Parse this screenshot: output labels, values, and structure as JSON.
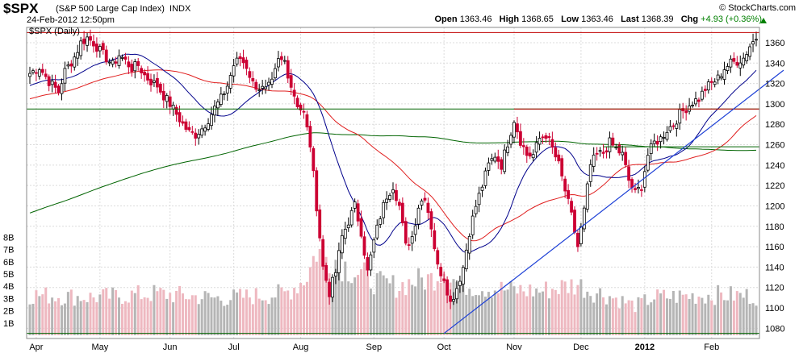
{
  "header": {
    "ticker": "$SPX",
    "name": "(S&P 500 Large Cap Index)",
    "exchange": "INDX",
    "datetime": "24-Feb-2012 12:50pm",
    "brand": "© StockCharts.com",
    "open_label": "Open",
    "open": "1363.46",
    "high_label": "High",
    "high": "1368.65",
    "low_label": "Low",
    "low": "1363.46",
    "last_label": "Last",
    "last": "1368.39",
    "chg_label": "Chg",
    "chg": "+4.93 (+0.36%)",
    "chart_label": "$SPX (Daily)"
  },
  "colors": {
    "up_candle": "#000000",
    "down_candle": "#cc0033",
    "sma_short": "#00008b",
    "sma_mid": "#e02020",
    "sma_long": "#006400",
    "trendline": "#1c3fd6",
    "resistance": "#c00000",
    "support": "#006400",
    "volume_up": "#b5b5b5",
    "volume_down": "#eeb8c0"
  },
  "chart_data": {
    "type": "candlestick",
    "ylim": [
      1070,
      1375
    ],
    "yticks": [
      1080,
      1100,
      1120,
      1140,
      1160,
      1180,
      1200,
      1220,
      1240,
      1260,
      1280,
      1300,
      1320,
      1340,
      1360
    ],
    "ytick_labels": [
      "1080",
      "1100",
      "1120",
      "1140",
      "1160",
      "1180",
      "1200",
      "1220",
      "1240",
      "1260",
      "1280",
      "1300",
      "1320",
      "1340",
      "1360"
    ],
    "volume_axis_labels": [
      "1B",
      "2B",
      "3B",
      "4B",
      "5B",
      "6B",
      "7B",
      "8B"
    ],
    "volume_axis_values": [
      1,
      2,
      3,
      4,
      5,
      6,
      7,
      8
    ],
    "xlabels": [
      "Apr",
      "May",
      "Jun",
      "Jul",
      "Aug",
      "Sep",
      "Oct",
      "Nov",
      "Dec",
      "2012",
      "Feb"
    ],
    "xlabel_days": [
      2,
      22,
      44,
      64,
      85,
      108,
      130,
      152,
      173,
      193,
      214
    ],
    "total_days": 229,
    "anchors": [
      [
        0,
        1330
      ],
      [
        3,
        1336
      ],
      [
        6,
        1322
      ],
      [
        9,
        1312
      ],
      [
        11,
        1332
      ],
      [
        14,
        1346
      ],
      [
        16,
        1360
      ],
      [
        18,
        1365
      ],
      [
        20,
        1360
      ],
      [
        22,
        1352
      ],
      [
        24,
        1345
      ],
      [
        26,
        1338
      ],
      [
        28,
        1348
      ],
      [
        30,
        1342
      ],
      [
        32,
        1335
      ],
      [
        34,
        1338
      ],
      [
        36,
        1328
      ],
      [
        38,
        1322
      ],
      [
        40,
        1318
      ],
      [
        42,
        1308
      ],
      [
        44,
        1300
      ],
      [
        46,
        1290
      ],
      [
        48,
        1280
      ],
      [
        50,
        1272
      ],
      [
        52,
        1270
      ],
      [
        54,
        1276
      ],
      [
        56,
        1285
      ],
      [
        58,
        1296
      ],
      [
        60,
        1305
      ],
      [
        62,
        1318
      ],
      [
        64,
        1338
      ],
      [
        66,
        1345
      ],
      [
        68,
        1337
      ],
      [
        70,
        1320
      ],
      [
        72,
        1316
      ],
      [
        74,
        1313
      ],
      [
        76,
        1320
      ],
      [
        78,
        1342
      ],
      [
        80,
        1342
      ],
      [
        82,
        1318
      ],
      [
        84,
        1300
      ],
      [
        86,
        1290
      ],
      [
        88,
        1260
      ],
      [
        90,
        1200
      ],
      [
        92,
        1140
      ],
      [
        94,
        1115
      ],
      [
        96,
        1135
      ],
      [
        98,
        1170
      ],
      [
        100,
        1185
      ],
      [
        102,
        1200
      ],
      [
        104,
        1175
      ],
      [
        106,
        1135
      ],
      [
        108,
        1165
      ],
      [
        110,
        1190
      ],
      [
        112,
        1210
      ],
      [
        114,
        1220
      ],
      [
        116,
        1200
      ],
      [
        118,
        1160
      ],
      [
        120,
        1170
      ],
      [
        122,
        1200
      ],
      [
        124,
        1210
      ],
      [
        126,
        1180
      ],
      [
        128,
        1140
      ],
      [
        130,
        1130
      ],
      [
        132,
        1105
      ],
      [
        134,
        1120
      ],
      [
        136,
        1140
      ],
      [
        138,
        1175
      ],
      [
        140,
        1200
      ],
      [
        142,
        1220
      ],
      [
        144,
        1240
      ],
      [
        146,
        1250
      ],
      [
        148,
        1240
      ],
      [
        150,
        1262
      ],
      [
        152,
        1285
      ],
      [
        154,
        1264
      ],
      [
        156,
        1250
      ],
      [
        158,
        1250
      ],
      [
        160,
        1266
      ],
      [
        162,
        1270
      ],
      [
        164,
        1256
      ],
      [
        166,
        1240
      ],
      [
        168,
        1215
      ],
      [
        170,
        1190
      ],
      [
        172,
        1160
      ],
      [
        174,
        1195
      ],
      [
        176,
        1240
      ],
      [
        178,
        1250
      ],
      [
        180,
        1252
      ],
      [
        182,
        1262
      ],
      [
        184,
        1256
      ],
      [
        186,
        1250
      ],
      [
        188,
        1225
      ],
      [
        190,
        1212
      ],
      [
        192,
        1220
      ],
      [
        194,
        1250
      ],
      [
        196,
        1262
      ],
      [
        198,
        1266
      ],
      [
        200,
        1275
      ],
      [
        202,
        1280
      ],
      [
        204,
        1290
      ],
      [
        206,
        1296
      ],
      [
        208,
        1302
      ],
      [
        210,
        1305
      ],
      [
        212,
        1315
      ],
      [
        214,
        1320
      ],
      [
        216,
        1325
      ],
      [
        218,
        1335
      ],
      [
        220,
        1340
      ],
      [
        222,
        1342
      ],
      [
        224,
        1345
      ],
      [
        226,
        1357
      ],
      [
        228,
        1365
      ]
    ],
    "volume_anchors": [
      [
        0,
        3.3
      ],
      [
        20,
        3.1
      ],
      [
        40,
        3.4
      ],
      [
        60,
        3.0
      ],
      [
        80,
        3.4
      ],
      [
        86,
        4.5
      ],
      [
        88,
        5.5
      ],
      [
        90,
        7.0
      ],
      [
        92,
        6.5
      ],
      [
        96,
        6.2
      ],
      [
        100,
        5.5
      ],
      [
        106,
        4.7
      ],
      [
        110,
        4.2
      ],
      [
        116,
        4.0
      ],
      [
        120,
        4.4
      ],
      [
        126,
        4.6
      ],
      [
        130,
        5.5
      ],
      [
        134,
        4.3
      ],
      [
        140,
        4.0
      ],
      [
        150,
        3.7
      ],
      [
        160,
        3.6
      ],
      [
        166,
        3.9
      ],
      [
        172,
        4.2
      ],
      [
        176,
        3.6
      ],
      [
        180,
        3.4
      ],
      [
        186,
        2.8
      ],
      [
        190,
        2.4
      ],
      [
        196,
        3.1
      ],
      [
        206,
        3.2
      ],
      [
        216,
        3.3
      ],
      [
        228,
        3.2
      ]
    ],
    "resistance_level": 1370,
    "support_mid_level": 1295,
    "trendline": {
      "from": [
        130,
        1075
      ],
      "to": [
        229,
        1318
      ]
    },
    "lower_line": 1075,
    "resistance_segment": {
      "from_day": 152,
      "to_day": 229,
      "level": 1295
    },
    "support_segment": {
      "from_day": 180,
      "to_day": 229,
      "level": 1258
    }
  }
}
